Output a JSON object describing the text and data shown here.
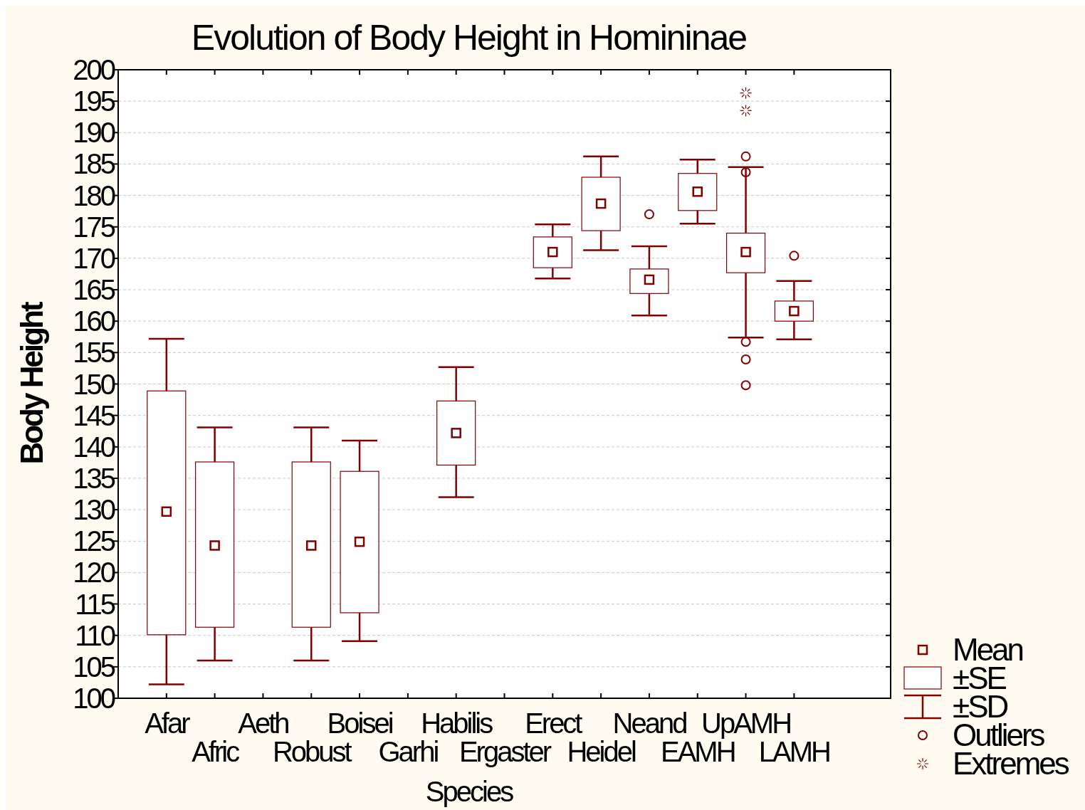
{
  "chart_data": {
    "type": "box",
    "title": "Evolution of Body Height in Homininae",
    "xlabel": "Species",
    "ylabel": "Body Height",
    "categories": [
      "Afar",
      "Afric",
      "Aeth",
      "Robust",
      "Boisei",
      "Garhi",
      "Habilis",
      "Ergaster",
      "Erect",
      "Heidel",
      "Neand",
      "EAMH",
      "UpAMH",
      "LAMH"
    ],
    "ylim": [
      100,
      200
    ],
    "yticks": [
      100,
      105,
      110,
      115,
      120,
      125,
      130,
      135,
      140,
      145,
      150,
      155,
      160,
      165,
      170,
      175,
      180,
      185,
      190,
      195,
      200
    ],
    "grid": "y",
    "legend": "bottom right",
    "annotations": [
      "Mean",
      "±SE",
      "±SD"
    ],
    "series": [
      {
        "color": "#800000",
        "boxes": [
          {
            "low": 102.2,
            "q1": 110.1,
            "q3": 148.9,
            "high": 157.2,
            "mean": 129.7
          },
          {
            "low": 106,
            "q1": 111.3,
            "q3": 137.6,
            "high": 143.1,
            "mean": 124.3
          },
          null,
          {
            "low": 106,
            "q1": 111.3,
            "q3": 137.6,
            "high": 143.1,
            "mean": 124.3
          },
          {
            "low": 109.1,
            "q1": 113.6,
            "q3": 136.1,
            "high": 141,
            "mean": 124.9
          },
          null,
          {
            "low": 132,
            "q1": 137.1,
            "q3": 147.3,
            "high": 152.7,
            "mean": 142.2
          },
          null,
          {
            "low": 166.8,
            "q1": 168.5,
            "q3": 173.4,
            "high": 175.4,
            "mean": 171
          },
          {
            "low": 171.3,
            "q1": 174.4,
            "q3": 182.9,
            "high": 186.2,
            "mean": 178.7
          },
          {
            "low": 160.9,
            "q1": 164.4,
            "q3": 168.3,
            "high": 171.9,
            "mean": 166.6
          },
          {
            "low": 175.5,
            "q1": 177.6,
            "q3": 183.5,
            "high": 185.7,
            "mean": 180.6
          },
          {
            "low": 157.4,
            "q1": 167.7,
            "q3": 174,
            "high": 184.5,
            "mean": 171
          },
          {
            "low": 157.1,
            "q1": 160,
            "q3": 163.2,
            "high": 166.4,
            "mean": 161.6
          }
        ]
      },
      {
        "type": "scatter",
        "name": "Outliers",
        "color": "#800000",
        "marker": "circle",
        "x": [
          "Neand",
          "UpAMH",
          "UpAMH",
          "UpAMH",
          "UpAMH",
          "UpAMH",
          "LAMH"
        ],
        "values": [
          177,
          186.2,
          183.7,
          156.7,
          153.9,
          149.8,
          170.4
        ]
      },
      {
        "type": "scatter",
        "name": "Extremes",
        "color": "#800000",
        "marker": "cross",
        "x": [
          "UpAMH",
          "UpAMH"
        ],
        "values": [
          196.3,
          193.5
        ]
      }
    ]
  }
}
